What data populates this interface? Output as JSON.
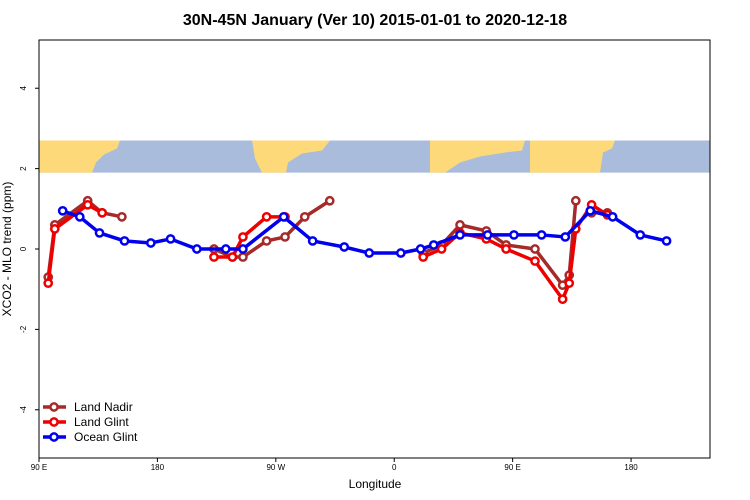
{
  "chart_data": {
    "type": "line",
    "title": "30N-45N January (Ver 10)   2015-01-01 to 2020-12-18",
    "xlabel": "Longitude",
    "ylabel": "XCO2 - MLO trend (ppm)",
    "xlim": [
      90,
      450
    ],
    "ylim": [
      -5.2,
      5.2
    ],
    "x_ticks": [
      {
        "value": 90,
        "label": "90 E"
      },
      {
        "value": 180,
        "label": "180"
      },
      {
        "value": 270,
        "label": "90 W"
      },
      {
        "value": 360,
        "label": "0"
      },
      {
        "value": 450,
        "label": "90 E"
      },
      {
        "value": 540,
        "label": "180"
      }
    ],
    "y_ticks": [
      {
        "value": -4,
        "label": "-4"
      },
      {
        "value": -2,
        "label": "-2"
      },
      {
        "value": 0,
        "label": "0"
      },
      {
        "value": 2,
        "label": "2"
      },
      {
        "value": 4,
        "label": "4"
      }
    ],
    "map_band": {
      "y_range": [
        1.9,
        2.7
      ],
      "ocean_color": "#a9bcdc",
      "land_color": "#fed97a"
    },
    "legend": {
      "position": "bottom-left"
    },
    "series": [
      {
        "name": "Land Nadir",
        "color": "#a52a2a",
        "segments": [
          {
            "x": [
              97,
              102,
              127,
              138,
              153
            ],
            "y": [
              -0.7,
              0.6,
              1.2,
              0.9,
              0.8
            ]
          },
          {
            "x": [
              223,
              237,
              245,
              263,
              277,
              292,
              311,
              322,
              340,
              351,
              382,
              396,
              410,
              430,
              445,
              467,
              488,
              493,
              498
            ],
            "y": [
              0,
              -0.2,
              -0.2,
              0.2,
              0.3,
              0.8,
              1.2,
              null,
              null,
              null,
              -0.1,
              0.1,
              0.6,
              0.45,
              0.1,
              0.0,
              -0.9,
              -0.65,
              1.2
            ]
          },
          {
            "x": [
              510,
              522
            ],
            "y": [
              0.9,
              0.9
            ]
          }
        ]
      },
      {
        "name": "Land Glint",
        "color": "#ee0000",
        "segments": [
          {
            "x": [
              97,
              102,
              127,
              138
            ],
            "y": [
              -0.85,
              0.5,
              1.1,
              0.9
            ]
          },
          {
            "x": [
              223,
              237,
              245,
              263,
              277
            ],
            "y": [
              -0.2,
              -0.2,
              0.3,
              0.8,
              0.8
            ]
          },
          {
            "x": [
              382,
              396,
              410,
              430,
              445,
              467,
              488,
              493,
              498,
              510,
              522
            ],
            "y": [
              -0.2,
              0.0,
              0.4,
              0.25,
              0.0,
              -0.3,
              -1.25,
              -0.85,
              0.5,
              1.1,
              0.85
            ]
          }
        ]
      },
      {
        "name": "Ocean Glint",
        "color": "#0000ee",
        "segments": [
          {
            "x": [
              108,
              121,
              136,
              155,
              175,
              190,
              210,
              232,
              245,
              276,
              298,
              322,
              341,
              365,
              380,
              390,
              410,
              431,
              451,
              472,
              490,
              509,
              526,
              547,
              567
            ],
            "y": [
              0.95,
              0.8,
              0.4,
              0.2,
              0.15,
              0.25,
              0.0,
              0.0,
              0.0,
              0.8,
              0.2,
              0.05,
              -0.1,
              -0.1,
              0.0,
              0.1,
              0.35,
              0.35,
              0.35,
              0.35,
              0.3,
              0.95,
              0.8,
              0.35,
              0.2
            ]
          }
        ]
      }
    ]
  }
}
